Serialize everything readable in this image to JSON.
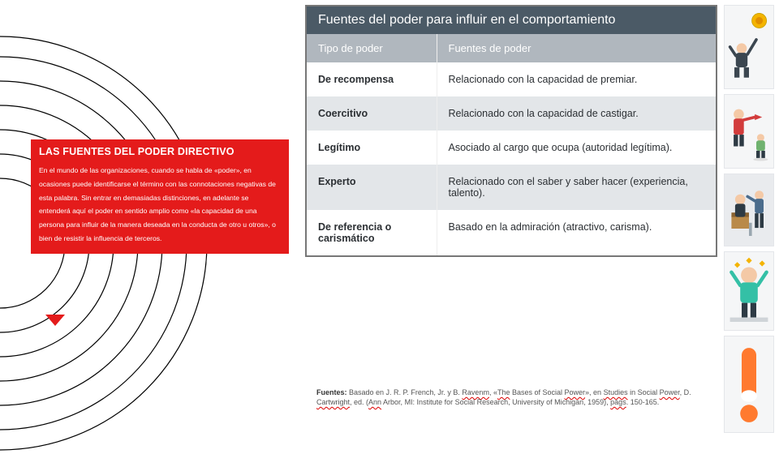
{
  "red_panel": {
    "title": "LAS FUENTES DEL PODER DIRECTIVO",
    "body": "En el mundo de las organizaciones, cuando se habla de «poder», en ocasiones puede identificarse el término con las connotaciones negativas de esta palabra. Sin entrar en demasiadas distinciones, en adelante se entenderá aquí el poder en sentido amplio como «la capacidad de una persona para influir de la manera deseada en la conducta de otro u otros», o bien de resistir la influencia de terceros."
  },
  "table": {
    "title": "Fuentes del poder para influir en el comportamiento",
    "col1": "Tipo de poder",
    "col2": "Fuentes de poder",
    "rows": [
      {
        "type": "De recompensa",
        "source": "Relacionado con la capacidad de premiar.",
        "alt": false
      },
      {
        "type": "Coercitivo",
        "source": "Relacionado con la capacidad de castigar.",
        "alt": true
      },
      {
        "type": "Legítimo",
        "source": "Asociado al cargo que ocupa (autoridad legítima).",
        "alt": false
      },
      {
        "type": "Experto",
        "source": "Relacionado con el saber y saber hacer (experiencia, talento).",
        "alt": true
      },
      {
        "type": "De referencia o carismático",
        "source": "Basado en la admiración (atractivo, carisma).",
        "alt": false
      }
    ]
  },
  "citation": {
    "lead": "Fuentes:",
    "text_a": " Basado en J. R. P. French, Jr. y B. ",
    "wavy1": "Ravenm",
    "text_b": ", «",
    "wavy2": "The",
    "text_c": " Bases of Social ",
    "wavy3": "Power",
    "text_d": "», en ",
    "wavy4": "Studies",
    "text_e": " in Social ",
    "wavy5": "Power",
    "text_f": ", D. ",
    "wavy6": "Cartwright",
    "text_g": ", ed. (",
    "wavy7": "Ann",
    "text_h": " Arbor, MI: Institute for Social Research, University of Michigan, 1959), ",
    "wavy8": "págs",
    "text_i": ". 150-165."
  },
  "colors": {
    "red": "#e41b1b",
    "header_bg": "#4b5a66",
    "subhead_bg": "#b0b7be",
    "alt_row": "#e3e6e9",
    "excl": "#ff7a2f"
  }
}
